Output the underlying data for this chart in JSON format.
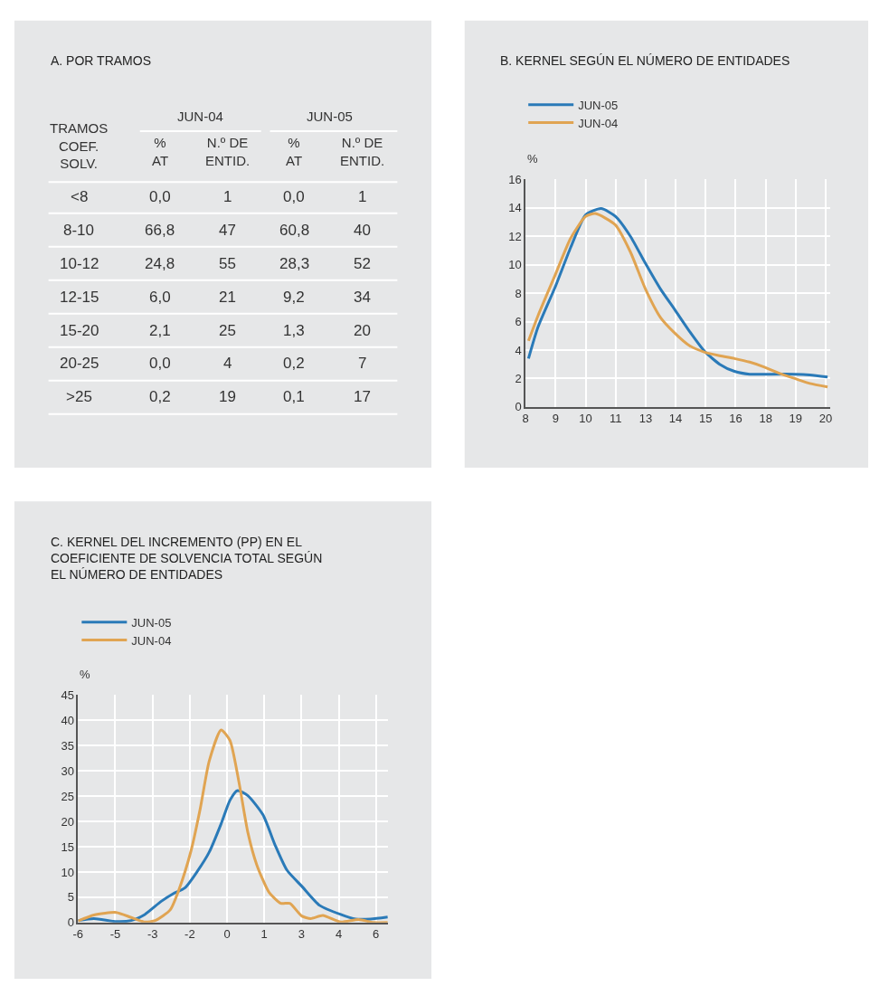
{
  "chart_data": [
    {
      "type": "other",
      "title": "A. POR TRAMOS",
      "annotations": [
        "JUN-04",
        "JUN-05",
        "TRAMOS\nCOEF.\nSOLV.",
        "%\nAT",
        "N.º DE\nENTID.",
        "%\nAT",
        "N.º DE\nENTID.",
        "<8",
        "0,0",
        "1",
        "0,0",
        "1",
        "8-10",
        "66,8",
        "47",
        "60,8",
        "40",
        "10-12",
        "24,8",
        "55",
        "28,3",
        "52",
        "12-15",
        "6,0",
        "21",
        "9,2",
        "34",
        "15-20",
        "2,1",
        "25",
        "1,3",
        "20",
        "20-25",
        "0,0",
        "4",
        "0,2",
        "7",
        ">25",
        "0,2",
        "19",
        "0,1",
        "17"
      ]
    },
    {
      "type": "line",
      "title": "B. KERNEL SEGÚN EL NÚMERO DE ENTIDADES",
      "ylabel": "%",
      "legend": "top left",
      "grid": true,
      "xlim": [
        7.7,
        20.3
      ],
      "ylim": [
        0,
        16
      ],
      "yticks": [
        0,
        2,
        4,
        6,
        8,
        10,
        12,
        14,
        16
      ],
      "xticks": [
        {
          "value": 7.7,
          "label": "8"
        },
        {
          "value": 8.94,
          "label": "9"
        },
        {
          "value": 10.18,
          "label": "10"
        },
        {
          "value": 11.42,
          "label": "11"
        },
        {
          "value": 12.66,
          "label": "13"
        },
        {
          "value": 13.9,
          "label": "14"
        },
        {
          "value": 15.14,
          "label": "15"
        },
        {
          "value": 16.38,
          "label": "16"
        },
        {
          "value": 17.62,
          "label": "18"
        },
        {
          "value": 18.86,
          "label": "19"
        },
        {
          "value": 20.1,
          "label": "20"
        }
      ],
      "series": [
        {
          "name": "JUN-05",
          "color": "#2a7ab8",
          "x": [
            7.82,
            8.21,
            8.94,
            9.56,
            10.18,
            10.82,
            11.41,
            12.03,
            12.65,
            13.27,
            13.86,
            14.48,
            15.1,
            15.72,
            16.33,
            16.96,
            17.57,
            18.82,
            19.44,
            20.18
          ],
          "values": [
            3.4,
            5.6,
            8.5,
            11.2,
            13.5,
            13.95,
            13.4,
            12.0,
            10.1,
            8.3,
            6.85,
            5.3,
            3.9,
            3.0,
            2.5,
            2.3,
            2.3,
            2.3,
            2.25,
            2.1
          ]
        },
        {
          "name": "JUN-04",
          "color": "#e0a452",
          "x": [
            7.82,
            8.21,
            8.94,
            9.56,
            10.18,
            10.58,
            11.41,
            12.03,
            12.65,
            13.27,
            13.86,
            14.48,
            15.1,
            15.72,
            16.33,
            16.96,
            17.57,
            18.2,
            18.82,
            19.44,
            20.18
          ],
          "values": [
            4.65,
            6.4,
            9.35,
            11.85,
            13.4,
            13.6,
            12.8,
            10.9,
            8.3,
            6.3,
            5.2,
            4.3,
            3.85,
            3.6,
            3.4,
            3.15,
            2.8,
            2.35,
            2.0,
            1.65,
            1.4
          ]
        }
      ]
    },
    {
      "type": "line",
      "title": "C. KERNEL DEL INCREMENTO (PP) EN EL\nCOEFICIENTE DE SOLVENCIA TOTAL SEGÚN\nEL NÚMERO DE ENTIDADES",
      "ylabel": "%",
      "legend": "top left",
      "grid": true,
      "xlim": [
        -6,
        6.5
      ],
      "ylim": [
        0,
        45
      ],
      "yticks": [
        0,
        5,
        10,
        15,
        20,
        25,
        30,
        35,
        40,
        45
      ],
      "xticks": [
        {
          "value": -6,
          "label": "-6"
        },
        {
          "value": -4.5,
          "label": "-5"
        },
        {
          "value": -3,
          "label": "-3"
        },
        {
          "value": -1.5,
          "label": "-2"
        },
        {
          "value": 0,
          "label": "0"
        },
        {
          "value": 1.5,
          "label": "1"
        },
        {
          "value": 3,
          "label": "3"
        },
        {
          "value": 4.5,
          "label": "4"
        },
        {
          "value": 6,
          "label": "6"
        }
      ],
      "series": [
        {
          "name": "JUN-05",
          "color": "#2a7ab8",
          "x": [
            -6,
            -5.36,
            -4.46,
            -3.86,
            -3.31,
            -2.65,
            -2.17,
            -1.69,
            -1.2,
            -0.72,
            -0.24,
            0.12,
            0.42,
            0.84,
            1.45,
            1.93,
            2.41,
            3.01,
            3.73,
            4.58,
            5.18,
            5.78,
            6.47
          ],
          "values": [
            0.4,
            0.8,
            0.2,
            0.4,
            1.6,
            4.2,
            5.7,
            6.9,
            10.1,
            13.9,
            19.5,
            24.2,
            26.1,
            25.1,
            21.3,
            15.4,
            10.4,
            7.2,
            3.4,
            1.6,
            0.7,
            0.7,
            1.1
          ]
        },
        {
          "name": "JUN-04",
          "color": "#e0a452",
          "x": [
            -6,
            -5.36,
            -4.46,
            -3.86,
            -3.31,
            -2.89,
            -2.29,
            -1.93,
            -1.45,
            -1.08,
            -0.72,
            -0.24,
            0.12,
            0.48,
            0.84,
            1.2,
            1.69,
            2.17,
            2.53,
            3.01,
            3.37,
            3.86,
            4.58,
            5.3,
            5.9,
            6.47
          ],
          "values": [
            0.3,
            1.5,
            2.0,
            1.0,
            0.1,
            0.4,
            2.5,
            6.6,
            14.2,
            22.5,
            31.9,
            38.1,
            36.0,
            27.8,
            17.8,
            11.4,
            6.0,
            3.8,
            3.8,
            1.3,
            0.8,
            1.4,
            0.1,
            0.6,
            0,
            0
          ]
        }
      ]
    }
  ]
}
